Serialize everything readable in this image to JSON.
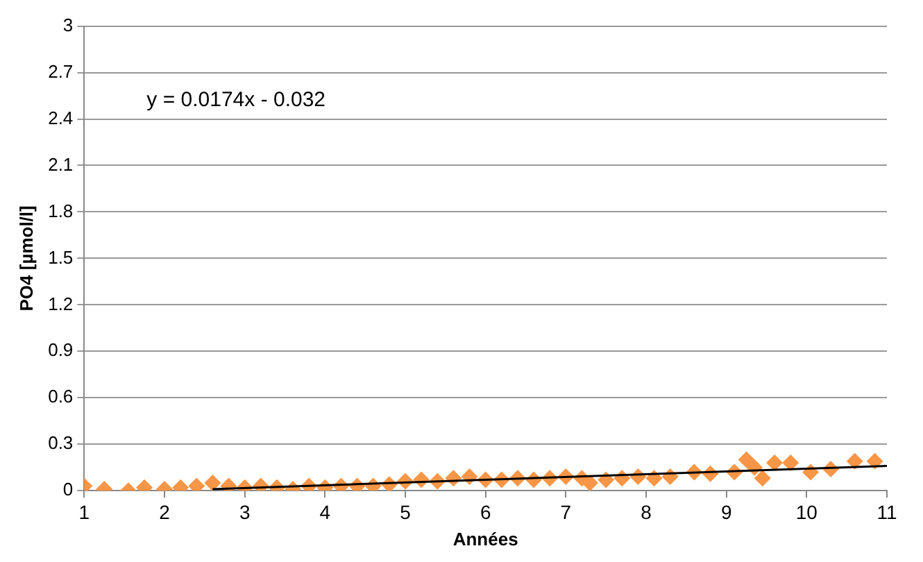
{
  "chart_data": {
    "type": "scatter",
    "xlabel": "Années",
    "ylabel": "PO4 [µmol/l]",
    "xlim": [
      1,
      11
    ],
    "xticks": [
      1,
      2,
      3,
      4,
      5,
      6,
      7,
      8,
      9,
      10,
      11
    ],
    "ylim": [
      0,
      3
    ],
    "yticks": [
      0,
      0.3,
      0.6,
      0.9,
      1.2,
      1.5,
      1.8,
      2.1,
      2.4,
      2.7,
      3
    ],
    "grid": "y",
    "legend": false,
    "annotations": [
      "y = 0.0174x - 0.032"
    ],
    "series": [
      {
        "color": "#f79646",
        "marker": "diamond",
        "x": [
          1,
          1.25,
          1.55,
          1.75,
          2,
          2.2,
          2.4,
          2.6,
          2.8,
          3,
          3.2,
          3.4,
          3.6,
          3.8,
          4,
          4.2,
          4.4,
          4.6,
          4.8,
          5,
          5.2,
          5.4,
          5.6,
          5.8,
          6,
          6.2,
          6.4,
          6.6,
          6.8,
          7,
          7.2,
          7.3,
          7.5,
          7.7,
          7.9,
          8.1,
          8.3,
          8.6,
          8.8,
          9.1,
          9.25,
          9.35,
          9.45,
          9.6,
          9.8,
          10.05,
          10.3,
          10.6,
          10.85
        ],
        "values": [
          0.03,
          0.01,
          0,
          0.02,
          0.01,
          0.02,
          0.03,
          0.05,
          0.03,
          0.02,
          0.03,
          0.02,
          0.01,
          0.03,
          0.02,
          0.03,
          0.03,
          0.03,
          0.04,
          0.06,
          0.07,
          0.06,
          0.08,
          0.09,
          0.07,
          0.07,
          0.08,
          0.07,
          0.08,
          0.09,
          0.08,
          0.05,
          0.07,
          0.08,
          0.09,
          0.08,
          0.09,
          0.12,
          0.11,
          0.12,
          0.2,
          0.15,
          0.08,
          0.18,
          0.18,
          0.12,
          0.14,
          0.19,
          0.19
        ]
      },
      {
        "type": "line",
        "color": "#000000",
        "marker": "none",
        "x": [
          2.6,
          11
        ],
        "values": [
          0.01,
          0.16
        ]
      }
    ]
  }
}
